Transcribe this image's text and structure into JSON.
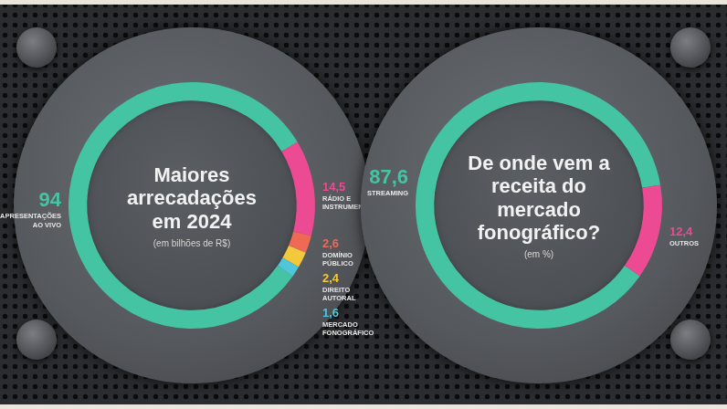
{
  "chart_data": [
    {
      "type": "doughnut",
      "title": "Maiores arrecadações em 2024",
      "subtitle": "(em bilhões de R$)",
      "categories": [
        "APRESENTAÇÕES AO VIVO",
        "RÁDIO E INSTRUMENTOS",
        "DOMÍNIO PÚBLICO",
        "DIREITO AUTORAL",
        "MERCADO FONOGRÁFICO"
      ],
      "values": [
        94,
        14.5,
        2.6,
        2.4,
        1.6
      ],
      "value_labels": [
        "94",
        "14,5",
        "2,6",
        "2,4",
        "1,6"
      ],
      "colors": [
        "#45c4a4",
        "#ec4a92",
        "#ee6a55",
        "#f2c83c",
        "#4fc6da"
      ],
      "data_labels": true
    },
    {
      "type": "doughnut",
      "title": "De onde vem a receita do mercado fonográfico?",
      "subtitle": "(em %)",
      "categories": [
        "STREAMING",
        "OUTROS"
      ],
      "values": [
        87.6,
        12.4
      ],
      "value_labels": [
        "87,6",
        "12,4"
      ],
      "colors": [
        "#45c4a4",
        "#ec4a92"
      ],
      "data_labels": true
    }
  ]
}
